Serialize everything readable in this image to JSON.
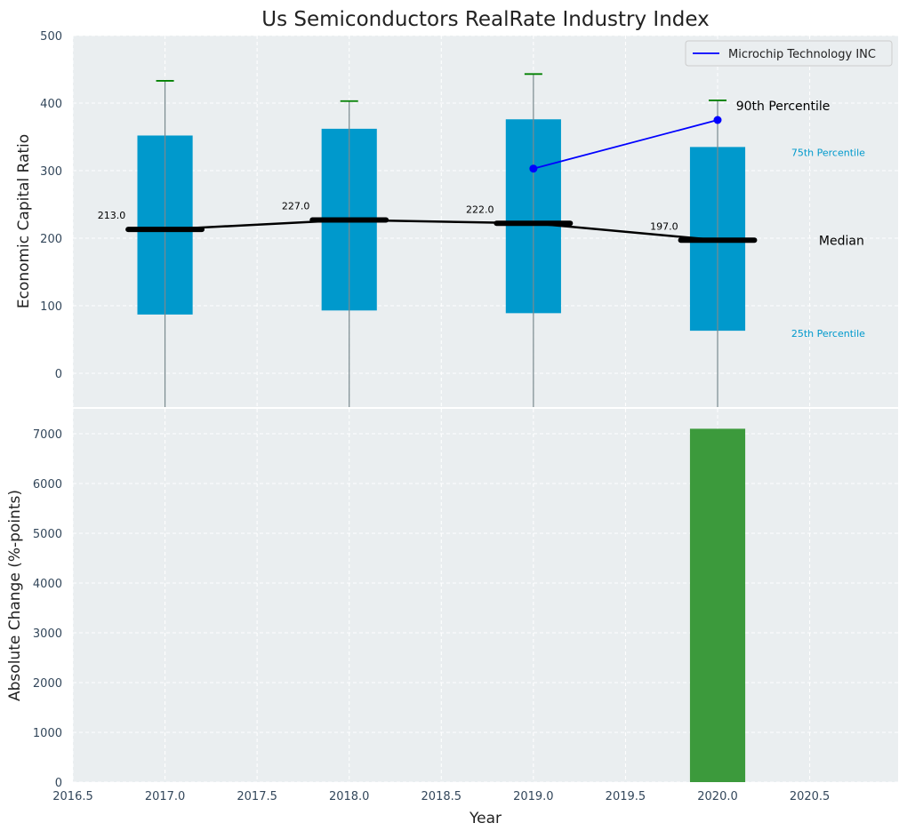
{
  "chart_data": [
    {
      "type": "box",
      "title": "Us Semiconductors RealRate Industry Index",
      "xlabel": "",
      "ylabel": "Economic Capital Ratio",
      "xlim": [
        2016.5,
        2020.98
      ],
      "ylim": [
        -50,
        500
      ],
      "grid": true,
      "legend_position": "top-right",
      "x_ticks": [
        2016.5,
        2017.0,
        2017.5,
        2018.0,
        2018.5,
        2019.0,
        2019.5,
        2020.0,
        2020.5
      ],
      "x_tick_labels": [
        "2016.5",
        "2017.0",
        "2017.5",
        "2018.0",
        "2018.5",
        "2019.0",
        "2019.5",
        "2020.0",
        "2020.5"
      ],
      "y_ticks": [
        0,
        100,
        200,
        300,
        400,
        500
      ],
      "y_tick_labels": [
        "0",
        "100",
        "200",
        "300",
        "400",
        "500"
      ],
      "boxes": [
        {
          "x": 2017,
          "p25": 87,
          "median": 213,
          "p75": 352,
          "p90": 433,
          "median_label": "213.0"
        },
        {
          "x": 2018,
          "p25": 93,
          "median": 227,
          "p75": 362,
          "p90": 403,
          "median_label": "227.0"
        },
        {
          "x": 2019,
          "p25": 89,
          "median": 222,
          "p75": 376,
          "p90": 443,
          "median_label": "222.0"
        },
        {
          "x": 2020,
          "p25": 63,
          "median": 197,
          "p75": 335,
          "p90": 404,
          "median_label": "197.0"
        }
      ],
      "series": [
        {
          "name": "Microchip Technology INC",
          "color": "#0000ff",
          "x": [
            2019,
            2020
          ],
          "y": [
            303,
            375
          ]
        }
      ],
      "annotations": {
        "p90": "90th Percentile",
        "p75": "75th Percentile",
        "median": "Median",
        "p25": "25th Percentile"
      },
      "colors": {
        "box": "#0099cc",
        "whisker_cap": "#008000",
        "median_line": "#000000",
        "annotation_blue": "#0099cc"
      }
    },
    {
      "type": "bar",
      "title": "",
      "xlabel": "Year",
      "ylabel": "Absolute Change (%-points)",
      "xlim": [
        2016.5,
        2020.98
      ],
      "ylim": [
        0,
        7500
      ],
      "grid": true,
      "x_ticks": [
        2016.5,
        2017.0,
        2017.5,
        2018.0,
        2018.5,
        2019.0,
        2019.5,
        2020.0,
        2020.5
      ],
      "x_tick_labels": [
        "2016.5",
        "2017.0",
        "2017.5",
        "2018.0",
        "2018.5",
        "2019.0",
        "2019.5",
        "2020.0",
        "2020.5"
      ],
      "y_ticks": [
        0,
        1000,
        2000,
        3000,
        4000,
        5000,
        6000,
        7000
      ],
      "y_tick_labels": [
        "0",
        "1000",
        "2000",
        "3000",
        "4000",
        "5000",
        "6000",
        "7000"
      ],
      "bars": [
        {
          "x": 2020,
          "value": 7100,
          "color": "#3c9a3c"
        }
      ]
    }
  ]
}
